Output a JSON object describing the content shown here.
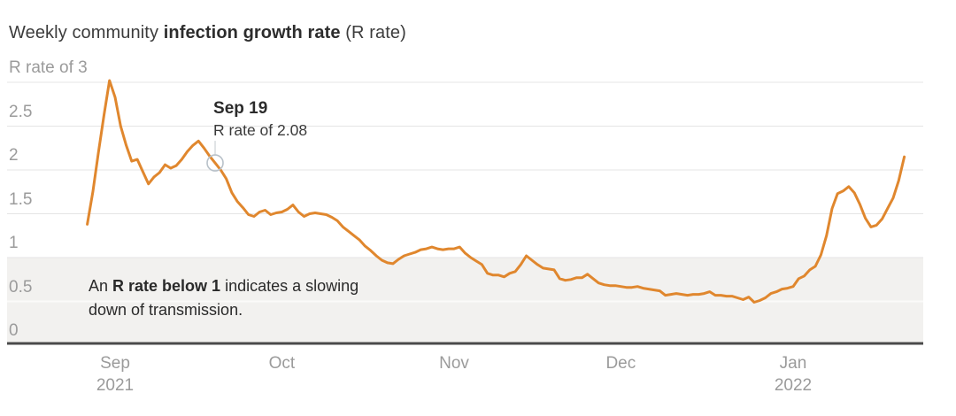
{
  "title": {
    "prefix": "Weekly community ",
    "bold": "infection growth rate",
    "suffix": " (R rate)"
  },
  "annotation": {
    "heading": "Sep 19",
    "detail": "R rate of 2.08"
  },
  "band_note": {
    "prefix": "An ",
    "bold": "R rate below 1",
    "suffix": " indicates a slowing",
    "line2": "down of transmission."
  },
  "colors": {
    "line": "#e0872e",
    "band": "#f2f1ef",
    "band_inner_line": "#fbfaf9",
    "gridline": "#e4e4e4",
    "axis": "#4a4a4a",
    "tick_text": "#9b9b9b",
    "marker_stroke": "#b8c1c9",
    "leader": "#cdd2d6"
  },
  "chart_data": {
    "type": "line",
    "title": "Weekly community infection growth rate (R rate)",
    "ylabel": "R rate",
    "ylim": [
      0,
      3
    ],
    "grid": true,
    "y_ticks": [
      {
        "value": 3,
        "label": "R rate of 3"
      },
      {
        "value": 2.5,
        "label": "2.5"
      },
      {
        "value": 2,
        "label": "2"
      },
      {
        "value": 1.5,
        "label": "1.5"
      },
      {
        "value": 1,
        "label": "1"
      },
      {
        "value": 0.5,
        "label": "0.5"
      },
      {
        "value": 0,
        "label": "0"
      }
    ],
    "x_ticks": [
      {
        "date": "2021-09-01",
        "label": "Sep",
        "sublabel": "2021"
      },
      {
        "date": "2021-10-01",
        "label": "Oct",
        "sublabel": ""
      },
      {
        "date": "2021-11-01",
        "label": "Nov",
        "sublabel": ""
      },
      {
        "date": "2021-12-01",
        "label": "Dec",
        "sublabel": ""
      },
      {
        "date": "2022-01-01",
        "label": "Jan",
        "sublabel": "2022"
      }
    ],
    "highlight_band": {
      "from": 0,
      "to": 1,
      "note": "An R rate below 1 indicates a slowing down of transmission."
    },
    "marker": {
      "date": "2021-09-19",
      "value": 2.08,
      "label": "Sep 19",
      "detail": "R rate of 2.08"
    },
    "series": [
      {
        "name": "R rate",
        "points": [
          [
            "2021-08-27",
            1.38
          ],
          [
            "2021-08-28",
            1.75
          ],
          [
            "2021-08-29",
            2.2
          ],
          [
            "2021-08-30",
            2.62
          ],
          [
            "2021-08-31",
            3.02
          ],
          [
            "2021-09-01",
            2.83
          ],
          [
            "2021-09-02",
            2.5
          ],
          [
            "2021-09-03",
            2.28
          ],
          [
            "2021-09-04",
            2.1
          ],
          [
            "2021-09-05",
            2.12
          ],
          [
            "2021-09-06",
            1.98
          ],
          [
            "2021-09-07",
            1.84
          ],
          [
            "2021-09-08",
            1.92
          ],
          [
            "2021-09-09",
            1.97
          ],
          [
            "2021-09-10",
            2.06
          ],
          [
            "2021-09-11",
            2.02
          ],
          [
            "2021-09-12",
            2.05
          ],
          [
            "2021-09-13",
            2.12
          ],
          [
            "2021-09-14",
            2.21
          ],
          [
            "2021-09-15",
            2.28
          ],
          [
            "2021-09-16",
            2.33
          ],
          [
            "2021-09-17",
            2.25
          ],
          [
            "2021-09-18",
            2.16
          ],
          [
            "2021-09-19",
            2.08
          ],
          [
            "2021-09-20",
            2.0
          ],
          [
            "2021-09-21",
            1.9
          ],
          [
            "2021-09-22",
            1.74
          ],
          [
            "2021-09-23",
            1.64
          ],
          [
            "2021-09-24",
            1.57
          ],
          [
            "2021-09-25",
            1.49
          ],
          [
            "2021-09-26",
            1.47
          ],
          [
            "2021-09-27",
            1.52
          ],
          [
            "2021-09-28",
            1.54
          ],
          [
            "2021-09-29",
            1.49
          ],
          [
            "2021-09-30",
            1.51
          ],
          [
            "2021-10-01",
            1.52
          ],
          [
            "2021-10-02",
            1.55
          ],
          [
            "2021-10-03",
            1.6
          ],
          [
            "2021-10-04",
            1.52
          ],
          [
            "2021-10-05",
            1.47
          ],
          [
            "2021-10-06",
            1.5
          ],
          [
            "2021-10-07",
            1.51
          ],
          [
            "2021-10-08",
            1.5
          ],
          [
            "2021-10-09",
            1.49
          ],
          [
            "2021-10-10",
            1.46
          ],
          [
            "2021-10-11",
            1.42
          ],
          [
            "2021-10-12",
            1.35
          ],
          [
            "2021-10-13",
            1.3
          ],
          [
            "2021-10-14",
            1.25
          ],
          [
            "2021-10-15",
            1.2
          ],
          [
            "2021-10-16",
            1.13
          ],
          [
            "2021-10-17",
            1.08
          ],
          [
            "2021-10-18",
            1.02
          ],
          [
            "2021-10-19",
            0.97
          ],
          [
            "2021-10-20",
            0.94
          ],
          [
            "2021-10-21",
            0.93
          ],
          [
            "2021-10-22",
            0.98
          ],
          [
            "2021-10-23",
            1.02
          ],
          [
            "2021-10-24",
            1.04
          ],
          [
            "2021-10-25",
            1.06
          ],
          [
            "2021-10-26",
            1.09
          ],
          [
            "2021-10-27",
            1.1
          ],
          [
            "2021-10-28",
            1.12
          ],
          [
            "2021-10-29",
            1.1
          ],
          [
            "2021-10-30",
            1.09
          ],
          [
            "2021-10-31",
            1.1
          ],
          [
            "2021-11-01",
            1.1
          ],
          [
            "2021-11-02",
            1.12
          ],
          [
            "2021-11-03",
            1.05
          ],
          [
            "2021-11-04",
            1.0
          ],
          [
            "2021-11-05",
            0.96
          ],
          [
            "2021-11-06",
            0.92
          ],
          [
            "2021-11-07",
            0.82
          ],
          [
            "2021-11-08",
            0.8
          ],
          [
            "2021-11-09",
            0.8
          ],
          [
            "2021-11-10",
            0.78
          ],
          [
            "2021-11-11",
            0.82
          ],
          [
            "2021-11-12",
            0.84
          ],
          [
            "2021-11-13",
            0.92
          ],
          [
            "2021-11-14",
            1.02
          ],
          [
            "2021-11-15",
            0.97
          ],
          [
            "2021-11-16",
            0.92
          ],
          [
            "2021-11-17",
            0.88
          ],
          [
            "2021-11-18",
            0.87
          ],
          [
            "2021-11-19",
            0.86
          ],
          [
            "2021-11-20",
            0.76
          ],
          [
            "2021-11-21",
            0.74
          ],
          [
            "2021-11-22",
            0.75
          ],
          [
            "2021-11-23",
            0.77
          ],
          [
            "2021-11-24",
            0.77
          ],
          [
            "2021-11-25",
            0.81
          ],
          [
            "2021-11-26",
            0.76
          ],
          [
            "2021-11-27",
            0.71
          ],
          [
            "2021-11-28",
            0.69
          ],
          [
            "2021-11-29",
            0.68
          ],
          [
            "2021-11-30",
            0.68
          ],
          [
            "2021-12-01",
            0.67
          ],
          [
            "2021-12-02",
            0.66
          ],
          [
            "2021-12-03",
            0.66
          ],
          [
            "2021-12-04",
            0.67
          ],
          [
            "2021-12-05",
            0.65
          ],
          [
            "2021-12-06",
            0.64
          ],
          [
            "2021-12-07",
            0.63
          ],
          [
            "2021-12-08",
            0.62
          ],
          [
            "2021-12-09",
            0.57
          ],
          [
            "2021-12-10",
            0.58
          ],
          [
            "2021-12-11",
            0.59
          ],
          [
            "2021-12-12",
            0.58
          ],
          [
            "2021-12-13",
            0.57
          ],
          [
            "2021-12-14",
            0.58
          ],
          [
            "2021-12-15",
            0.58
          ],
          [
            "2021-12-16",
            0.59
          ],
          [
            "2021-12-17",
            0.61
          ],
          [
            "2021-12-18",
            0.57
          ],
          [
            "2021-12-19",
            0.57
          ],
          [
            "2021-12-20",
            0.56
          ],
          [
            "2021-12-21",
            0.56
          ],
          [
            "2021-12-22",
            0.54
          ],
          [
            "2021-12-23",
            0.52
          ],
          [
            "2021-12-24",
            0.55
          ],
          [
            "2021-12-25",
            0.49
          ],
          [
            "2021-12-26",
            0.51
          ],
          [
            "2021-12-27",
            0.54
          ],
          [
            "2021-12-28",
            0.59
          ],
          [
            "2021-12-29",
            0.61
          ],
          [
            "2021-12-30",
            0.64
          ],
          [
            "2021-12-31",
            0.65
          ],
          [
            "2022-01-01",
            0.67
          ],
          [
            "2022-01-02",
            0.76
          ],
          [
            "2022-01-03",
            0.79
          ],
          [
            "2022-01-04",
            0.86
          ],
          [
            "2022-01-05",
            0.9
          ],
          [
            "2022-01-06",
            1.03
          ],
          [
            "2022-01-07",
            1.25
          ],
          [
            "2022-01-08",
            1.56
          ],
          [
            "2022-01-09",
            1.73
          ],
          [
            "2022-01-10",
            1.76
          ],
          [
            "2022-01-11",
            1.81
          ],
          [
            "2022-01-12",
            1.74
          ],
          [
            "2022-01-13",
            1.61
          ],
          [
            "2022-01-14",
            1.45
          ],
          [
            "2022-01-15",
            1.35
          ],
          [
            "2022-01-16",
            1.37
          ],
          [
            "2022-01-17",
            1.44
          ],
          [
            "2022-01-18",
            1.56
          ],
          [
            "2022-01-19",
            1.68
          ],
          [
            "2022-01-20",
            1.88
          ],
          [
            "2022-01-21",
            2.15
          ]
        ]
      }
    ]
  }
}
